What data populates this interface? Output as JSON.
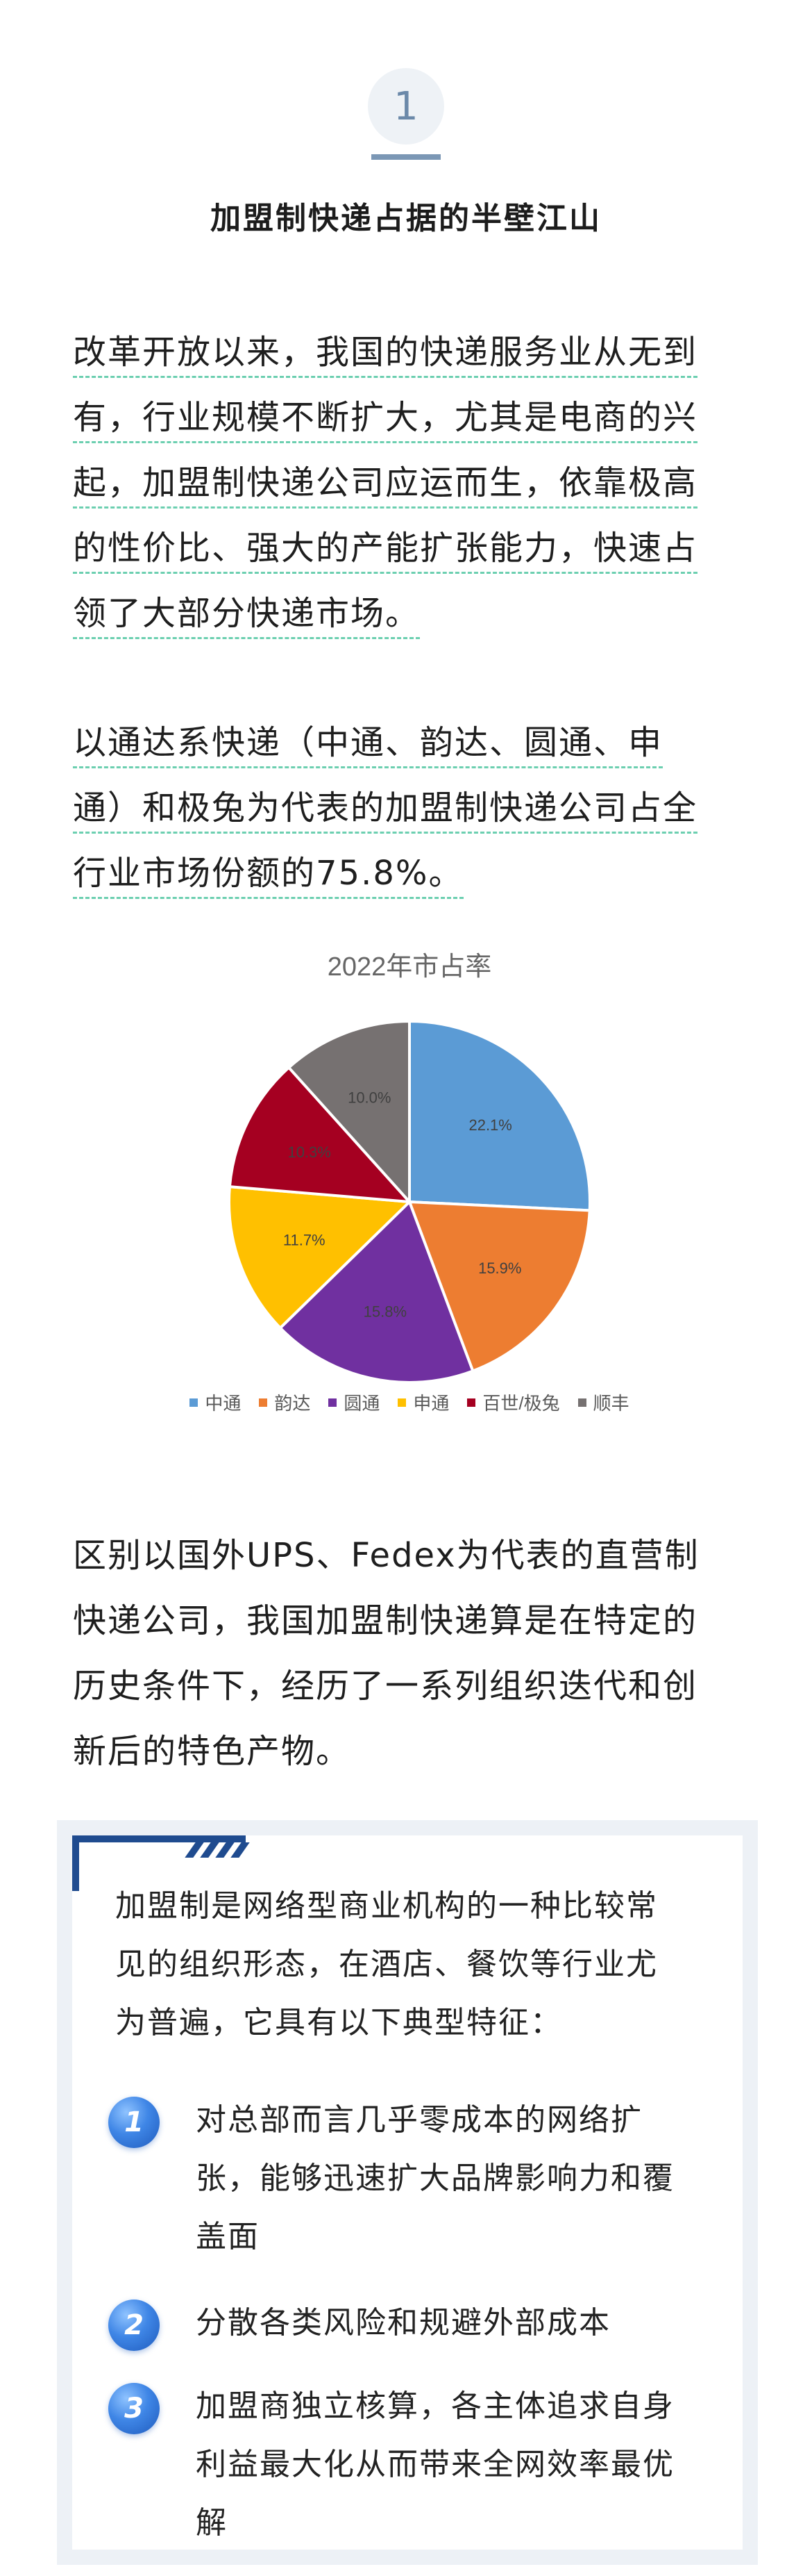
{
  "section": {
    "number": "1",
    "title": "加盟制快递占据的半壁江山"
  },
  "paragraphs": {
    "p1_lines": [
      "改革开放以来，我国的快递服务业从无到",
      "有，行业规模不断扩大，尤其是电商的兴",
      "起，加盟制快递公司应运而生，依靠极高",
      "的性价比、强大的产能扩张能力，快速占",
      "领了大部分快递市场。"
    ],
    "p2_lines": [
      "以通达系快递（中通、韵达、圆通、申",
      "通）和极兔为代表的加盟制快递公司占全",
      "行业市场份额的75.8%。"
    ],
    "p3_lines": [
      "区别以国外UPS、Fedex为代表的直营制",
      "快递公司，我国加盟制快递算是在特定的",
      "历史条件下，经历了一系列组织迭代和创",
      "新后的特色产物。"
    ]
  },
  "chart_data": {
    "type": "pie",
    "title": "2022年市占率",
    "categories": [
      "中通",
      "韵达",
      "圆通",
      "申通",
      "百世/极兔",
      "顺丰"
    ],
    "values": [
      22.1,
      15.9,
      15.8,
      11.7,
      10.3,
      10.0
    ],
    "labels": [
      "22.1%",
      "15.9%",
      "15.8%",
      "11.7%",
      "10.3%",
      "10.0%"
    ],
    "colors": [
      "#5b9bd5",
      "#ed7d31",
      "#7030a0",
      "#ffc000",
      "#a50021",
      "#767171"
    ],
    "legend_position": "bottom"
  },
  "card": {
    "intro_lines": [
      "加盟制是网络型商业机构的一种比较常",
      "见的组织形态，在酒店、餐饮等行业尤",
      "为普遍，它具有以下典型特征："
    ],
    "features": [
      {
        "number": "1",
        "lines": [
          "对总部而言几乎零成本的网络扩",
          "张，能够迅速扩大品牌影响力和覆",
          "盖面"
        ]
      },
      {
        "number": "2",
        "lines": [
          "分散各类风险和规避外部成本"
        ]
      },
      {
        "number": "3",
        "lines": [
          "加盟商独立核算，各主体追求自身",
          "利益最大化从而带来全网效率最优",
          "解"
        ]
      }
    ]
  }
}
